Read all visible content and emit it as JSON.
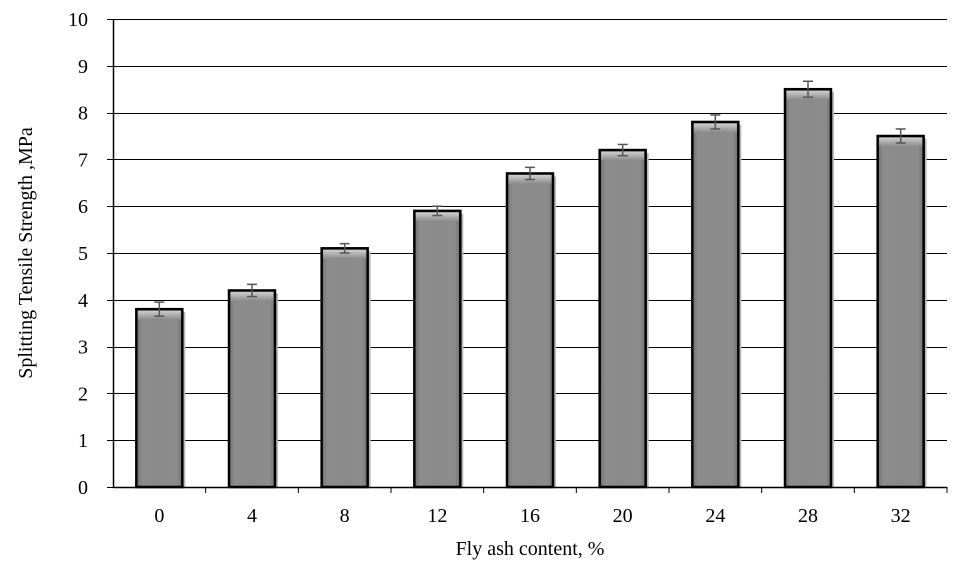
{
  "chart_data": {
    "type": "bar",
    "title": "",
    "xlabel": "Fly ash content, %",
    "ylabel": "Splitting Tensile Strength ,MPa",
    "categories": [
      "0",
      "4",
      "8",
      "12",
      "16",
      "20",
      "24",
      "28",
      "32"
    ],
    "values": [
      3.8,
      4.2,
      5.1,
      5.9,
      6.7,
      7.2,
      7.8,
      8.5,
      7.5
    ],
    "error": [
      0.15,
      0.13,
      0.1,
      0.1,
      0.13,
      0.12,
      0.15,
      0.17,
      0.15
    ],
    "ylim": [
      0,
      10
    ],
    "yticks": [
      0,
      1,
      2,
      3,
      4,
      5,
      6,
      7,
      8,
      9,
      10
    ],
    "grid": true,
    "legend": "none",
    "colors": {
      "bar_fill": "#888888",
      "bar_edge": "#000000",
      "grid": "#000000",
      "error_bar": "#555555"
    }
  }
}
